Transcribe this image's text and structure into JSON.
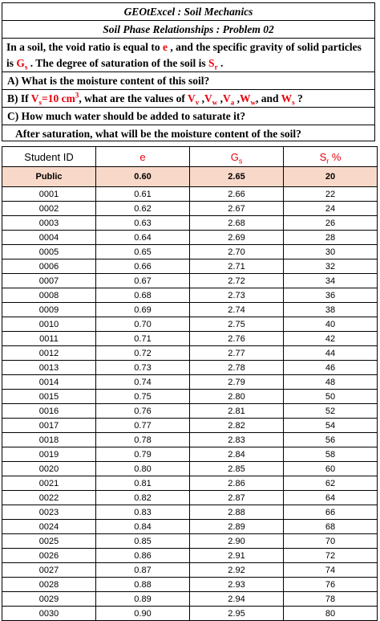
{
  "title": "GEOtExcel : Soil Mechanics",
  "subtitle": "Soil Phase Relationships : Problem 02",
  "intro": {
    "p1": "In a soil, the void ratio is equal to ",
    "e": "e",
    "p2": " , and the specific gravity of solid particles is ",
    "gs_main": "G",
    "gs_sub": "s",
    "p3": " . The degree of saturation of the soil is ",
    "sr_main": "S",
    "sr_sub": "r",
    "p4": " ."
  },
  "question_a": "A) What is the moisture content of this soil?",
  "question_b": {
    "p1": "B) If ",
    "vs_main": "V",
    "vs_sub": "s",
    "vs_eq": "=10 cm",
    "vs_sup": "3",
    "p2": ", what are the values of ",
    "vv_main": "V",
    "vv_sub": "v",
    "comma1": " ,",
    "vw_main": "V",
    "vw_sub": "w",
    "comma2": " ,",
    "va_main": "V",
    "va_sub": "a",
    "comma3": " ,",
    "ww_main": "W",
    "ww_sub": "w",
    "and": ", and ",
    "ws_main": "W",
    "ws_sub": "s",
    "end": " ?"
  },
  "question_c1": "C) How much water should be added to saturate it?",
  "question_c2": "After saturation, what will be the moisture content of the soil?",
  "table": {
    "headers": {
      "id": "Student ID",
      "e": "e",
      "gs_main": "G",
      "gs_sub": "s",
      "sr_main": "S",
      "sr_sub": "r",
      "sr_unit": " %"
    },
    "public": {
      "id": "Public",
      "e": "0.60",
      "gs": "2.65",
      "sr": "20"
    },
    "rows": [
      {
        "id": "0001",
        "e": "0.61",
        "gs": "2.66",
        "sr": "22"
      },
      {
        "id": "0002",
        "e": "0.62",
        "gs": "2.67",
        "sr": "24"
      },
      {
        "id": "0003",
        "e": "0.63",
        "gs": "2.68",
        "sr": "26"
      },
      {
        "id": "0004",
        "e": "0.64",
        "gs": "2.69",
        "sr": "28"
      },
      {
        "id": "0005",
        "e": "0.65",
        "gs": "2.70",
        "sr": "30"
      },
      {
        "id": "0006",
        "e": "0.66",
        "gs": "2.71",
        "sr": "32"
      },
      {
        "id": "0007",
        "e": "0.67",
        "gs": "2.72",
        "sr": "34"
      },
      {
        "id": "0008",
        "e": "0.68",
        "gs": "2.73",
        "sr": "36"
      },
      {
        "id": "0009",
        "e": "0.69",
        "gs": "2.74",
        "sr": "38"
      },
      {
        "id": "0010",
        "e": "0.70",
        "gs": "2.75",
        "sr": "40"
      },
      {
        "id": "0011",
        "e": "0.71",
        "gs": "2.76",
        "sr": "42"
      },
      {
        "id": "0012",
        "e": "0.72",
        "gs": "2.77",
        "sr": "44"
      },
      {
        "id": "0013",
        "e": "0.73",
        "gs": "2.78",
        "sr": "46"
      },
      {
        "id": "0014",
        "e": "0.74",
        "gs": "2.79",
        "sr": "48"
      },
      {
        "id": "0015",
        "e": "0.75",
        "gs": "2.80",
        "sr": "50"
      },
      {
        "id": "0016",
        "e": "0.76",
        "gs": "2.81",
        "sr": "52"
      },
      {
        "id": "0017",
        "e": "0.77",
        "gs": "2.82",
        "sr": "54"
      },
      {
        "id": "0018",
        "e": "0.78",
        "gs": "2.83",
        "sr": "56"
      },
      {
        "id": "0019",
        "e": "0.79",
        "gs": "2.84",
        "sr": "58"
      },
      {
        "id": "0020",
        "e": "0.80",
        "gs": "2.85",
        "sr": "60"
      },
      {
        "id": "0021",
        "e": "0.81",
        "gs": "2.86",
        "sr": "62"
      },
      {
        "id": "0022",
        "e": "0.82",
        "gs": "2.87",
        "sr": "64"
      },
      {
        "id": "0023",
        "e": "0.83",
        "gs": "2.88",
        "sr": "66"
      },
      {
        "id": "0024",
        "e": "0.84",
        "gs": "2.89",
        "sr": "68"
      },
      {
        "id": "0025",
        "e": "0.85",
        "gs": "2.90",
        "sr": "70"
      },
      {
        "id": "0026",
        "e": "0.86",
        "gs": "2.91",
        "sr": "72"
      },
      {
        "id": "0027",
        "e": "0.87",
        "gs": "2.92",
        "sr": "74"
      },
      {
        "id": "0028",
        "e": "0.88",
        "gs": "2.93",
        "sr": "76"
      },
      {
        "id": "0029",
        "e": "0.89",
        "gs": "2.94",
        "sr": "78"
      },
      {
        "id": "0030",
        "e": "0.90",
        "gs": "2.95",
        "sr": "80"
      }
    ]
  },
  "colors": {
    "accent_red": "#e8000b",
    "public_row_bg": "#f8d9c9"
  }
}
